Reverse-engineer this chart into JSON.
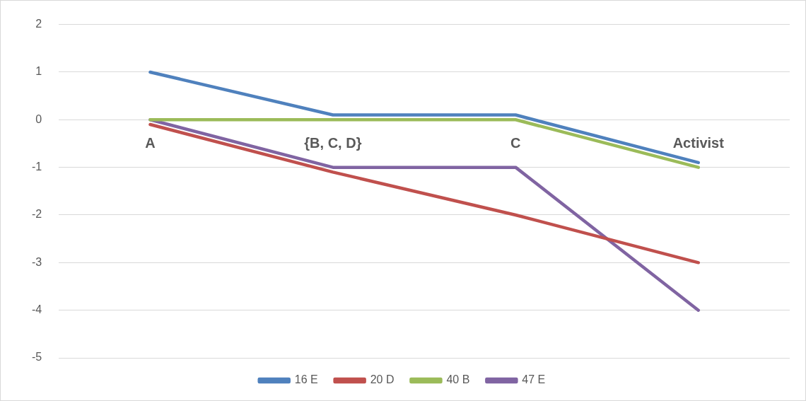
{
  "chart_data": {
    "type": "line",
    "categories": [
      "A",
      "{B, C, D}",
      "C",
      "Activist"
    ],
    "series": [
      {
        "name": "16 E",
        "color": "#4f81bd",
        "values": [
          1,
          0.1,
          0.1,
          -0.9
        ]
      },
      {
        "name": "20 D",
        "color": "#c0504d",
        "values": [
          -0.1,
          -1.1,
          -2,
          -3
        ]
      },
      {
        "name": "40 B",
        "color": "#9bbb59",
        "values": [
          0,
          0,
          0,
          -1
        ]
      },
      {
        "name": "47 E",
        "color": "#8064a2",
        "values": [
          0,
          -1,
          -1,
          -4
        ]
      }
    ],
    "ylim": [
      -5,
      2
    ],
    "yticks": [
      -5,
      -4,
      -3,
      -2,
      -1,
      0,
      1,
      2
    ],
    "grid": "y",
    "legend": "bottom",
    "marker": "none",
    "line_style": "solid"
  }
}
